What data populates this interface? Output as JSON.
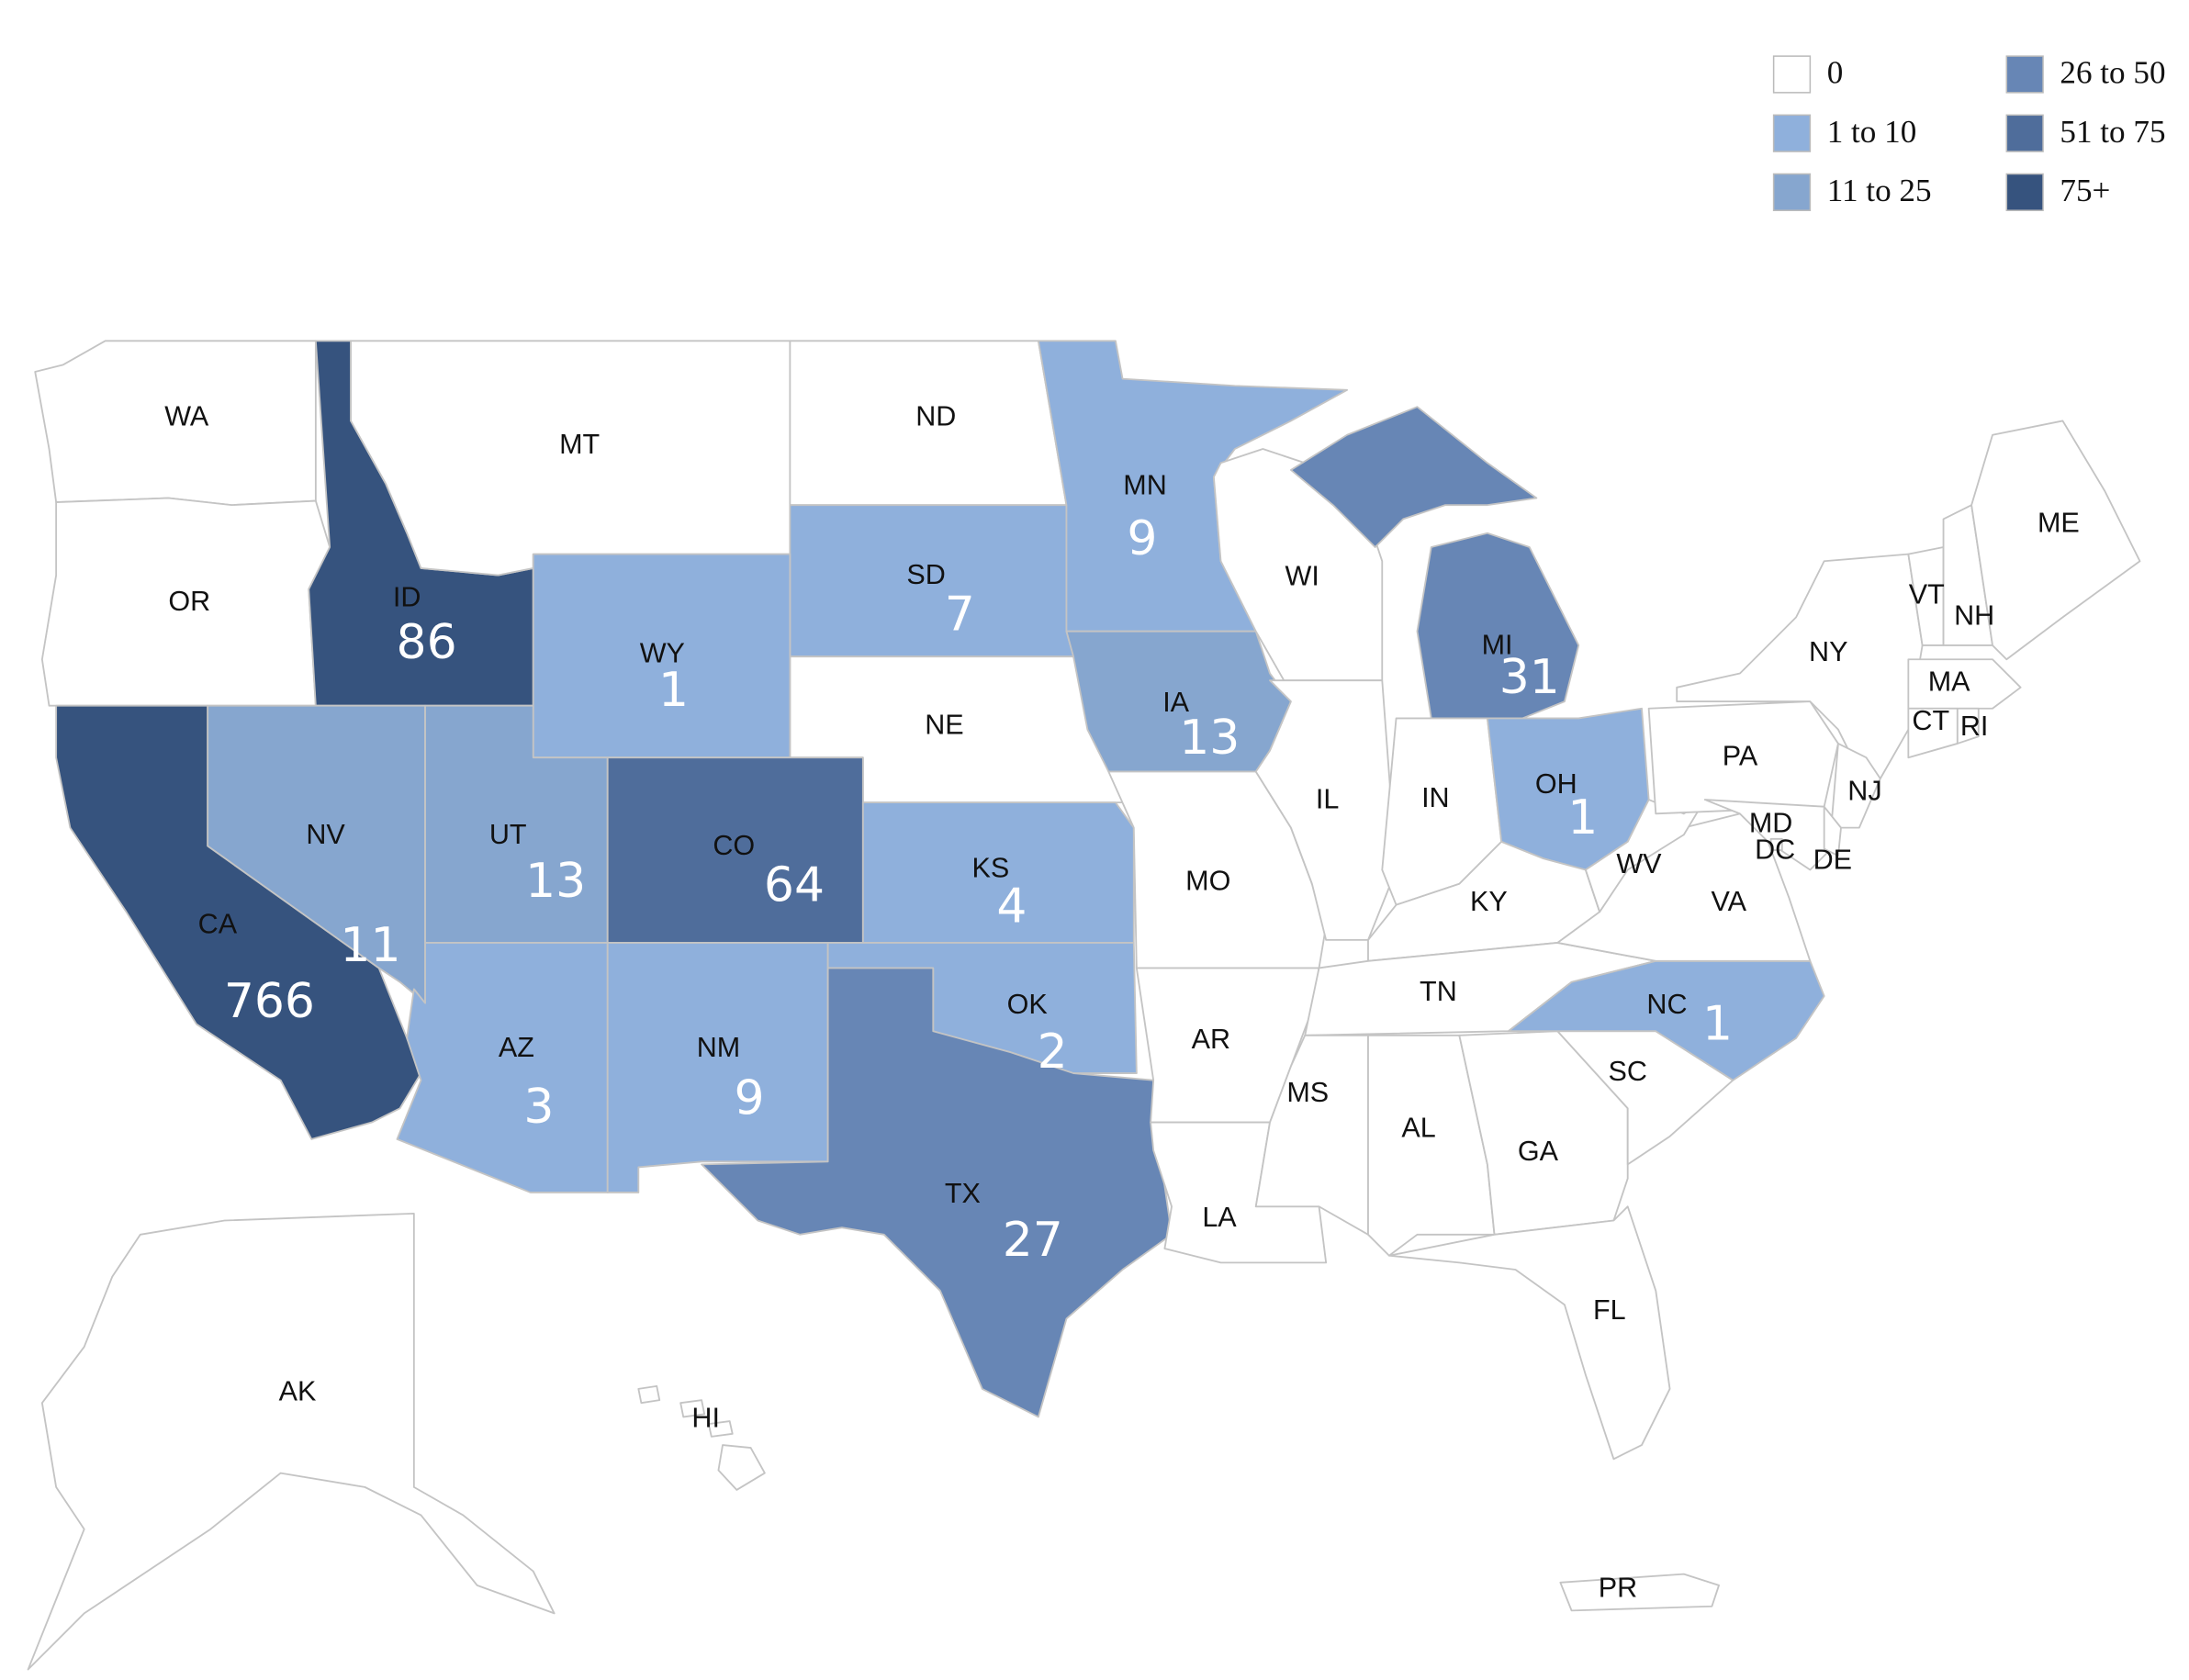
{
  "legend": [
    {
      "label": "0",
      "color": "#ffffff"
    },
    {
      "label": "1 to 10",
      "color": "#8fb0dc"
    },
    {
      "label": "11 to 25",
      "color": "#86a6cf"
    },
    {
      "label": "26 to 50",
      "color": "#6786b5"
    },
    {
      "label": "51 to 75",
      "color": "#4f6d9b"
    },
    {
      "label": "75+",
      "color": "#36537e"
    }
  ],
  "states": [
    {
      "label": "WA",
      "color": "#ffffff"
    },
    {
      "label": "OR",
      "color": "#ffffff"
    },
    {
      "label": "CA",
      "value": 766,
      "color": "#36537e"
    },
    {
      "label": "ID",
      "value": 86,
      "color": "#36537e"
    },
    {
      "label": "MT",
      "color": "#ffffff"
    },
    {
      "label": "ND",
      "color": "#ffffff"
    },
    {
      "label": "SD",
      "value": 7,
      "color": "#8fb0dc"
    },
    {
      "label": "NE",
      "color": "#ffffff"
    },
    {
      "label": "MN",
      "value": 9,
      "color": "#8fb0dc"
    },
    {
      "label": "WY",
      "value": 1,
      "color": "#8fb0dc"
    },
    {
      "label": "NV",
      "value": 11,
      "color": "#86a6cf"
    },
    {
      "label": "UT",
      "value": 13,
      "color": "#86a6cf"
    },
    {
      "label": "CO",
      "value": 64,
      "color": "#4f6d9b"
    },
    {
      "label": "AZ",
      "value": 3,
      "color": "#8fb0dc"
    },
    {
      "label": "NM",
      "value": 9,
      "color": "#8fb0dc"
    },
    {
      "label": "KS",
      "value": 4,
      "color": "#8fb0dc"
    },
    {
      "label": "OK",
      "value": 2,
      "color": "#8fb0dc"
    },
    {
      "label": "TX",
      "value": 27,
      "color": "#6786b5"
    },
    {
      "label": "IA",
      "value": 13,
      "color": "#86a6cf"
    },
    {
      "label": "MO",
      "color": "#ffffff"
    },
    {
      "label": "AR",
      "color": "#ffffff"
    },
    {
      "label": "LA",
      "color": "#ffffff"
    },
    {
      "label": "WI",
      "color": "#ffffff"
    },
    {
      "label": "IL",
      "color": "#ffffff"
    },
    {
      "label": "MI",
      "value": 31,
      "color": "#6786b5"
    },
    {
      "label": "IN",
      "color": "#ffffff"
    },
    {
      "label": "OH",
      "value": 1,
      "color": "#8fb0dc"
    },
    {
      "label": "KY",
      "color": "#ffffff"
    },
    {
      "label": "TN",
      "color": "#ffffff"
    },
    {
      "label": "MS",
      "color": "#ffffff"
    },
    {
      "label": "AL",
      "color": "#ffffff"
    },
    {
      "label": "GA",
      "color": "#ffffff"
    },
    {
      "label": "FL",
      "color": "#ffffff"
    },
    {
      "label": "SC",
      "color": "#ffffff"
    },
    {
      "label": "NC",
      "value": 1,
      "color": "#8fb0dc"
    },
    {
      "label": "VA",
      "color": "#ffffff"
    },
    {
      "label": "WV",
      "color": "#ffffff"
    },
    {
      "label": "PA",
      "color": "#ffffff"
    },
    {
      "label": "NY",
      "color": "#ffffff"
    },
    {
      "label": "NJ",
      "color": "#ffffff"
    },
    {
      "label": "MD",
      "color": "#ffffff"
    },
    {
      "label": "DC",
      "color": "#ffffff"
    },
    {
      "label": "DE",
      "color": "#ffffff"
    },
    {
      "label": "VT",
      "color": "#ffffff"
    },
    {
      "label": "NH",
      "color": "#ffffff"
    },
    {
      "label": "ME",
      "color": "#ffffff"
    },
    {
      "label": "MA",
      "color": "#ffffff"
    },
    {
      "label": "CT",
      "color": "#ffffff"
    },
    {
      "label": "RI",
      "color": "#ffffff"
    },
    {
      "label": "AK",
      "color": "#ffffff"
    },
    {
      "label": "HI",
      "color": "#ffffff"
    },
    {
      "label": "PR",
      "color": "#ffffff"
    }
  ]
}
